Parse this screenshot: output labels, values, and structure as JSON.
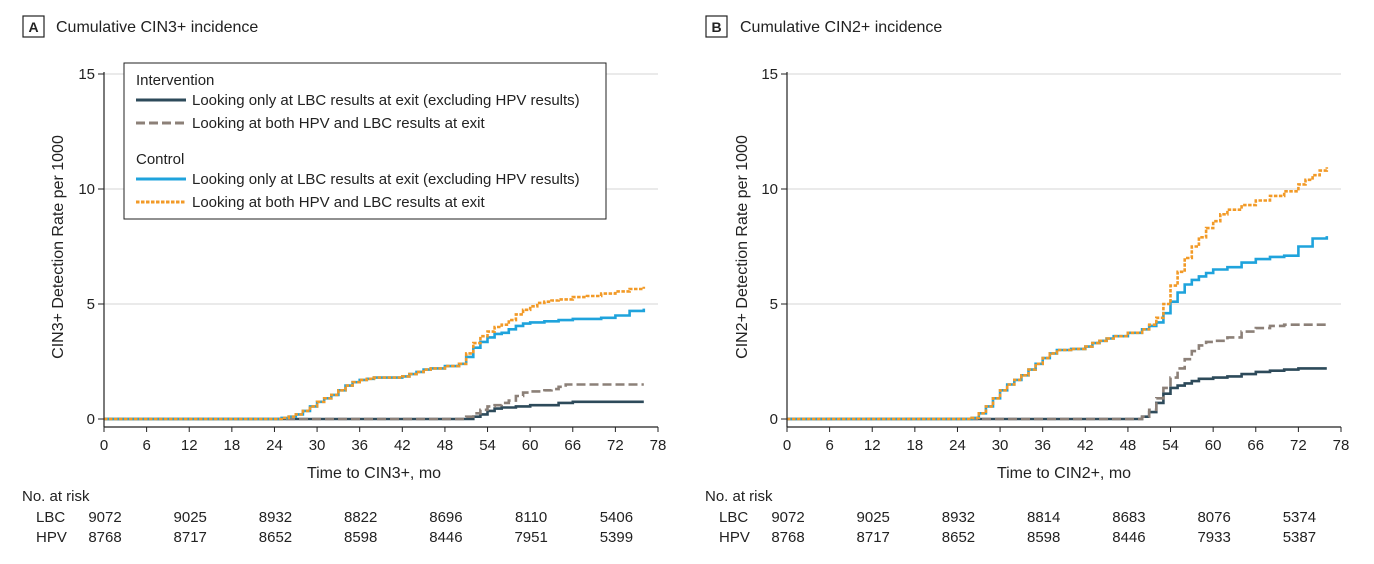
{
  "chart_data": [
    {
      "type": "line",
      "panel": "A",
      "title": "Cumulative CIN3+ incidence",
      "xlabel": "Time to CIN3+, mo",
      "ylabel": "CIN3+ Detection Rate per 1000",
      "xlim": [
        0,
        78
      ],
      "ylim": [
        0,
        15
      ],
      "xticks": [
        "0",
        "6",
        "12",
        "18",
        "24",
        "30",
        "36",
        "42",
        "48",
        "54",
        "60",
        "66",
        "72",
        "78"
      ],
      "yticks": [
        "0",
        "5",
        "10",
        "15"
      ],
      "grid": "horizontal",
      "legend_position": "top-left",
      "legend_groups": [
        "Intervention",
        "Control"
      ],
      "series": [
        {
          "name": "Looking only at LBC results at exit (excluding HPV results)",
          "group": "Intervention",
          "color": "#2d4a5a",
          "dash": "solid",
          "x": [
            0,
            50,
            52,
            53,
            54,
            55,
            56,
            57,
            58,
            60,
            61,
            62,
            64,
            66,
            68,
            70,
            72,
            74,
            76
          ],
          "y": [
            0,
            0,
            0.1,
            0.2,
            0.35,
            0.45,
            0.5,
            0.5,
            0.55,
            0.6,
            0.6,
            0.6,
            0.7,
            0.75,
            0.75,
            0.75,
            0.75,
            0.75,
            0.75
          ]
        },
        {
          "name": "Looking at both HPV and LBC results at exit",
          "group": "Intervention",
          "color": "#8c8078",
          "dash": "dashed",
          "x": [
            0,
            50,
            51,
            52,
            53,
            54,
            55,
            56,
            57,
            58,
            59,
            60,
            61,
            62,
            63,
            64,
            65,
            66,
            68,
            70,
            72,
            74,
            76
          ],
          "y": [
            0,
            0,
            0.1,
            0.25,
            0.4,
            0.55,
            0.6,
            0.7,
            0.8,
            1.0,
            1.15,
            1.2,
            1.2,
            1.25,
            1.3,
            1.4,
            1.5,
            1.5,
            1.5,
            1.5,
            1.5,
            1.5,
            1.5
          ]
        },
        {
          "name": "Looking only at LBC results at exit (excluding HPV results)",
          "group": "Control",
          "color": "#1fa3dc",
          "dash": "solid",
          "x": [
            0,
            24,
            25,
            26,
            27,
            28,
            29,
            30,
            31,
            32,
            33,
            34,
            35,
            36,
            37,
            38,
            40,
            42,
            43,
            44,
            45,
            46,
            48,
            50,
            51,
            52,
            53,
            54,
            55,
            56,
            57,
            58,
            59,
            60,
            62,
            64,
            66,
            68,
            70,
            72,
            74,
            76
          ],
          "y": [
            0,
            0,
            0.05,
            0.1,
            0.2,
            0.35,
            0.55,
            0.75,
            0.9,
            1.05,
            1.25,
            1.45,
            1.6,
            1.7,
            1.75,
            1.8,
            1.8,
            1.85,
            1.95,
            2.05,
            2.15,
            2.2,
            2.3,
            2.4,
            2.7,
            3.1,
            3.35,
            3.55,
            3.7,
            3.75,
            3.9,
            4.05,
            4.15,
            4.2,
            4.25,
            4.3,
            4.35,
            4.35,
            4.4,
            4.5,
            4.7,
            4.8
          ]
        },
        {
          "name": "Looking at both HPV and LBC results at exit",
          "group": "Control",
          "color": "#f29a27",
          "dash": "dotted",
          "x": [
            0,
            24,
            25,
            26,
            27,
            28,
            29,
            30,
            31,
            32,
            33,
            34,
            35,
            36,
            37,
            38,
            40,
            42,
            43,
            44,
            45,
            46,
            48,
            50,
            51,
            52,
            53,
            54,
            55,
            56,
            57,
            58,
            59,
            60,
            61,
            62,
            63,
            64,
            66,
            68,
            70,
            72,
            74,
            76
          ],
          "y": [
            0,
            0,
            0.05,
            0.1,
            0.2,
            0.35,
            0.55,
            0.75,
            0.9,
            1.05,
            1.25,
            1.45,
            1.6,
            1.7,
            1.75,
            1.8,
            1.8,
            1.85,
            1.95,
            2.05,
            2.15,
            2.2,
            2.3,
            2.4,
            2.85,
            3.3,
            3.6,
            3.8,
            4.0,
            4.1,
            4.3,
            4.55,
            4.75,
            4.9,
            5.05,
            5.1,
            5.15,
            5.2,
            5.3,
            5.35,
            5.45,
            5.55,
            5.65,
            5.75
          ]
        }
      ],
      "risk_table": {
        "label": "No. at risk",
        "rows": [
          {
            "name": "LBC",
            "values": [
              "9072",
              "9025",
              "8932",
              "8822",
              "8696",
              "8110",
              "5406"
            ]
          },
          {
            "name": "HPV",
            "values": [
              "8768",
              "8717",
              "8652",
              "8598",
              "8446",
              "7951",
              "5399"
            ]
          }
        ]
      }
    },
    {
      "type": "line",
      "panel": "B",
      "title": "Cumulative CIN2+ incidence",
      "xlabel": "Time to CIN2+, mo",
      "ylabel": "CIN2+ Detection Rate per 1000",
      "xlim": [
        0,
        78
      ],
      "ylim": [
        0,
        15
      ],
      "xticks": [
        "0",
        "6",
        "12",
        "18",
        "24",
        "30",
        "36",
        "42",
        "48",
        "54",
        "60",
        "66",
        "72",
        "78"
      ],
      "yticks": [
        "0",
        "5",
        "10",
        "15"
      ],
      "grid": "horizontal",
      "series": [
        {
          "name": "Looking only at LBC results at exit (excluding HPV results)",
          "group": "Intervention",
          "color": "#2d4a5a",
          "dash": "solid",
          "x": [
            0,
            49,
            50,
            51,
            52,
            53,
            54,
            55,
            56,
            57,
            58,
            60,
            62,
            64,
            66,
            68,
            70,
            72,
            74,
            76
          ],
          "y": [
            0,
            0,
            0.1,
            0.3,
            0.7,
            1.1,
            1.35,
            1.45,
            1.55,
            1.65,
            1.75,
            1.8,
            1.85,
            1.95,
            2.05,
            2.1,
            2.15,
            2.2,
            2.2,
            2.2
          ]
        },
        {
          "name": "Looking at both HPV and LBC results at exit",
          "group": "Intervention",
          "color": "#8c8078",
          "dash": "dashed",
          "x": [
            0,
            49,
            50,
            51,
            52,
            53,
            54,
            55,
            56,
            57,
            58,
            59,
            60,
            62,
            64,
            66,
            68,
            70,
            72,
            74,
            76
          ],
          "y": [
            0,
            0,
            0.1,
            0.4,
            0.9,
            1.35,
            1.8,
            2.2,
            2.6,
            2.95,
            3.2,
            3.35,
            3.4,
            3.55,
            3.8,
            3.95,
            4.05,
            4.1,
            4.1,
            4.1,
            4.1
          ]
        },
        {
          "name": "Looking only at LBC results at exit (excluding HPV results)",
          "group": "Control",
          "color": "#1fa3dc",
          "dash": "solid",
          "x": [
            0,
            25,
            26,
            27,
            28,
            29,
            30,
            31,
            32,
            33,
            34,
            35,
            36,
            37,
            38,
            40,
            42,
            43,
            44,
            45,
            46,
            48,
            50,
            51,
            52,
            53,
            54,
            55,
            56,
            57,
            58,
            59,
            60,
            62,
            64,
            66,
            68,
            70,
            72,
            74,
            76
          ],
          "y": [
            0,
            0,
            0.05,
            0.25,
            0.55,
            0.9,
            1.25,
            1.5,
            1.7,
            1.9,
            2.15,
            2.4,
            2.65,
            2.85,
            3.0,
            3.05,
            3.15,
            3.3,
            3.4,
            3.5,
            3.6,
            3.75,
            3.9,
            4.05,
            4.2,
            4.6,
            5.1,
            5.5,
            5.85,
            6.05,
            6.2,
            6.35,
            6.5,
            6.6,
            6.8,
            6.95,
            7.05,
            7.1,
            7.5,
            7.85,
            7.95
          ]
        },
        {
          "name": "Looking at both HPV and LBC results at exit",
          "group": "Control",
          "color": "#f29a27",
          "dash": "dotted",
          "x": [
            0,
            25,
            26,
            27,
            28,
            29,
            30,
            31,
            32,
            33,
            34,
            35,
            36,
            37,
            38,
            40,
            42,
            43,
            44,
            45,
            46,
            48,
            50,
            51,
            52,
            53,
            54,
            55,
            56,
            57,
            58,
            59,
            60,
            61,
            62,
            64,
            66,
            68,
            70,
            72,
            73,
            74,
            75,
            76
          ],
          "y": [
            0,
            0,
            0.05,
            0.25,
            0.55,
            0.9,
            1.25,
            1.5,
            1.7,
            1.9,
            2.15,
            2.4,
            2.65,
            2.85,
            3.0,
            3.05,
            3.15,
            3.3,
            3.4,
            3.5,
            3.6,
            3.75,
            3.9,
            4.1,
            4.4,
            5.0,
            5.8,
            6.4,
            7.0,
            7.5,
            7.9,
            8.3,
            8.6,
            8.9,
            9.1,
            9.3,
            9.5,
            9.7,
            9.9,
            10.2,
            10.4,
            10.6,
            10.8,
            10.95
          ]
        }
      ],
      "risk_table": {
        "label": "No. at risk",
        "rows": [
          {
            "name": "LBC",
            "values": [
              "9072",
              "9025",
              "8932",
              "8814",
              "8683",
              "8076",
              "5374"
            ]
          },
          {
            "name": "HPV",
            "values": [
              "8768",
              "8717",
              "8652",
              "8598",
              "8446",
              "7933",
              "5387"
            ]
          }
        ]
      }
    }
  ]
}
